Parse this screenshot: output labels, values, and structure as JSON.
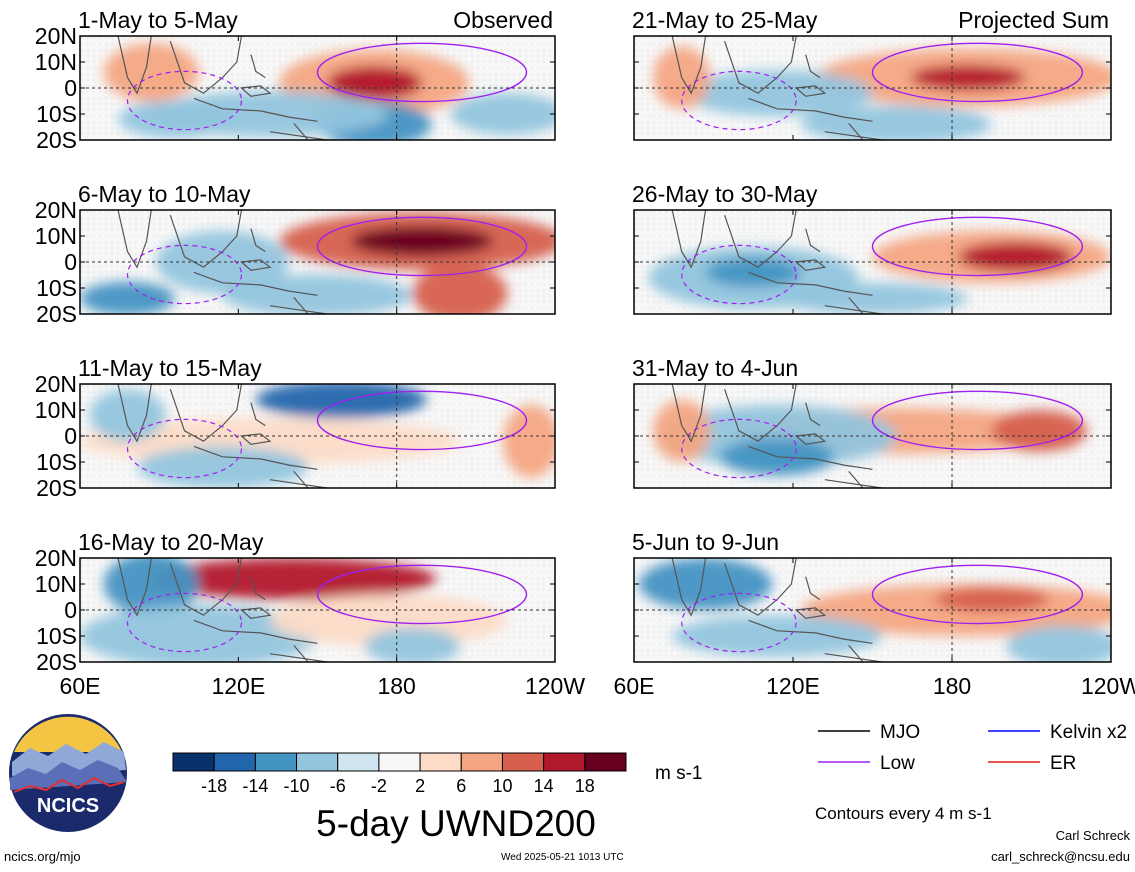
{
  "chart_data": {
    "type": "heatmap",
    "title": "5-day UWND200",
    "units": "m s-1",
    "x_ticks": [
      "60E",
      "120E",
      "180",
      "120W"
    ],
    "y_ticks": [
      "20N",
      "10N",
      "0",
      "10S",
      "20S"
    ],
    "colorbar": {
      "tick_labels": [
        "-18",
        "-14",
        "-10",
        "-6",
        "-2",
        "2",
        "6",
        "10",
        "14",
        "18"
      ],
      "colors": [
        "#08306b",
        "#2166ac",
        "#4393c3",
        "#92c5de",
        "#d1e5f0",
        "#f7f7f7",
        "#fddbc7",
        "#f4a582",
        "#d6604d",
        "#b2182b",
        "#67001f"
      ]
    },
    "columns": [
      {
        "header": "Observed",
        "panels": [
          "1-May to 5-May",
          "6-May to 10-May",
          "11-May to 15-May",
          "16-May to 20-May"
        ]
      },
      {
        "header": "Projected Sum",
        "panels": [
          "21-May to 25-May",
          "26-May to 30-May",
          "31-May to 4-Jun",
          "5-Jun to 9-Jun"
        ]
      }
    ],
    "legend": {
      "items": [
        {
          "label": "MJO",
          "color": "#000000"
        },
        {
          "label": "Kelvin x2",
          "color": "#0000ff"
        },
        {
          "label": "Low",
          "color": "#a020f0"
        },
        {
          "label": "ER",
          "color": "#e31a1c"
        }
      ],
      "note": "Contours every 4 m s-1"
    }
  },
  "footer": {
    "logo_text": "NCICS",
    "url": "ncics.org/mjo",
    "timestamp": "Wed 2025-05-21 1013 UTC",
    "author": "Carl Schreck",
    "email": "carl_schreck@ncsu.edu"
  }
}
